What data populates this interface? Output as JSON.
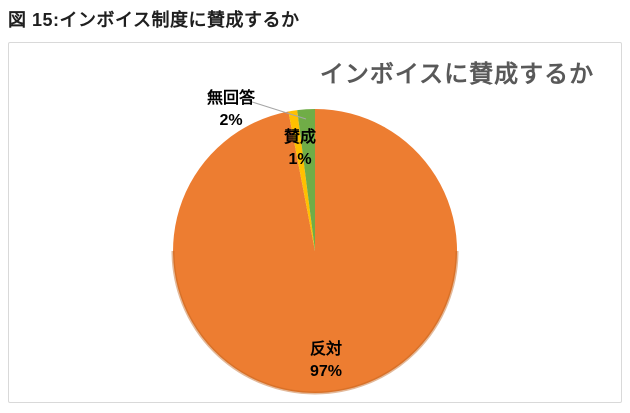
{
  "page": {
    "caption": "図 15:インボイス制度に賛成するか"
  },
  "chart": {
    "frame_border_color": "#d9d9d9",
    "leader_line_color": "#a6a6a6",
    "title_color": "#595959"
  },
  "chart_data": {
    "type": "pie",
    "title": "インボイスに賛成するか",
    "categories": [
      "反対",
      "賛成",
      "無回答"
    ],
    "values": [
      97,
      1,
      2
    ],
    "colors": [
      "#ED7D31",
      "#FFC000",
      "#70AD47"
    ],
    "start_angle_deg": 0,
    "direction": "clockwise",
    "legend": "none",
    "slices": [
      {
        "label": "反対",
        "value": 97,
        "pct_label": "97%",
        "color": "#ED7D31",
        "label_placement": "inside-bottom"
      },
      {
        "label": "賛成",
        "value": 1,
        "pct_label": "1%",
        "color": "#FFC000",
        "label_placement": "inside-top"
      },
      {
        "label": "無回答",
        "value": 2,
        "pct_label": "2%",
        "color": "#70AD47",
        "label_placement": "outside-top-left-leader"
      }
    ]
  }
}
